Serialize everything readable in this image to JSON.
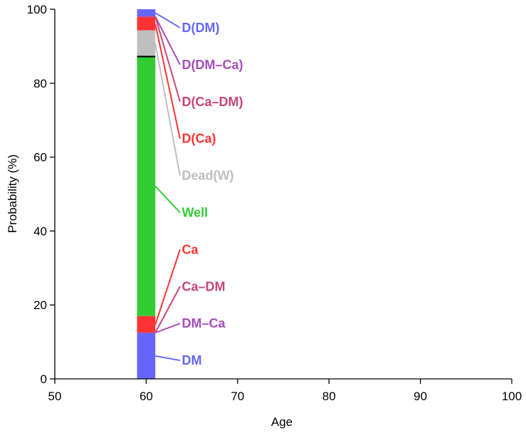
{
  "chart_data": {
    "type": "bar",
    "title": "",
    "xlabel": "Age",
    "ylabel": "Probability (%)",
    "xlim": [
      50,
      100
    ],
    "ylim": [
      0,
      100
    ],
    "x_ticks": [
      50,
      60,
      70,
      80,
      90,
      100
    ],
    "y_ticks": [
      0,
      20,
      40,
      60,
      80,
      100
    ],
    "grid": false,
    "bar": {
      "x_start": 59,
      "x_end": 61,
      "marker_line_y": 87.2,
      "segments": [
        {
          "name": "DM",
          "from": 0,
          "to": 12.5,
          "color": "#6666ff"
        },
        {
          "name": "DM–Ca",
          "from": 12.5,
          "to": 12.5,
          "color": "#a64dbb"
        },
        {
          "name": "Ca–DM",
          "from": 12.5,
          "to": 12.5,
          "color": "#c8457a"
        },
        {
          "name": "Ca",
          "from": 12.5,
          "to": 17,
          "color": "#ff3333"
        },
        {
          "name": "Well",
          "from": 17,
          "to": 87.2,
          "color": "#33cc33"
        },
        {
          "name": "Dead(W)",
          "from": 87.2,
          "to": 94.3,
          "color": "#bfbfbf"
        },
        {
          "name": "D(Ca)",
          "from": 94.3,
          "to": 98,
          "color": "#ff3333"
        },
        {
          "name": "D(Ca–DM)",
          "from": 98,
          "to": 98,
          "color": "#c8457a"
        },
        {
          "name": "D(DM–Ca)",
          "from": 98,
          "to": 98,
          "color": "#a64dbb"
        },
        {
          "name": "D(DM)",
          "from": 98,
          "to": 100,
          "color": "#6666ff"
        }
      ]
    },
    "labels": [
      {
        "text": "D(DM)",
        "color": "#6666ff",
        "anchor_y": 99,
        "label_y": 95
      },
      {
        "text": "D(DM–Ca)",
        "color": "#a64dbb",
        "anchor_y": 98,
        "label_y": 85
      },
      {
        "text": "D(Ca–DM)",
        "color": "#c8457a",
        "anchor_y": 98,
        "label_y": 75
      },
      {
        "text": "D(Ca)",
        "color": "#ff3333",
        "anchor_y": 96,
        "label_y": 65
      },
      {
        "text": "Dead(W)",
        "color": "#bfbfbf",
        "anchor_y": 90.7,
        "label_y": 55
      },
      {
        "text": "Well",
        "color": "#33cc33",
        "anchor_y": 52.1,
        "label_y": 45
      },
      {
        "text": "Ca",
        "color": "#ff3333",
        "anchor_y": 14.7,
        "label_y": 35
      },
      {
        "text": "Ca–DM",
        "color": "#c8457a",
        "anchor_y": 12.5,
        "label_y": 25
      },
      {
        "text": "DM–Ca",
        "color": "#a64dbb",
        "anchor_y": 12.5,
        "label_y": 15
      },
      {
        "text": "DM",
        "color": "#6666ff",
        "anchor_y": 6.2,
        "label_y": 5
      }
    ]
  }
}
